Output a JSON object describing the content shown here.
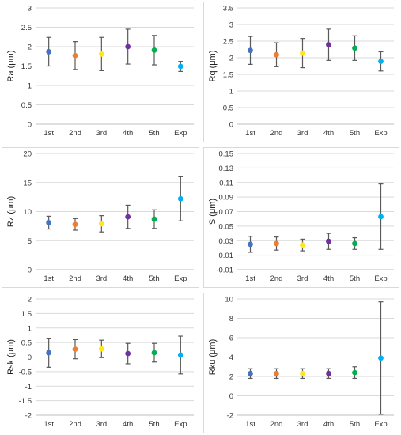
{
  "chart_data": [
    {
      "type": "scatter",
      "ylabel": "Ra (μm)",
      "categories": [
        "1st",
        "2nd",
        "3rd",
        "4th",
        "5th",
        "Exp"
      ],
      "values": [
        1.87,
        1.77,
        1.81,
        2.0,
        1.91,
        1.49
      ],
      "errors": [
        0.37,
        0.36,
        0.43,
        0.45,
        0.38,
        0.13
      ],
      "ylim": [
        0,
        3
      ],
      "yticks": [
        "0",
        "0.5",
        "1",
        "1.5",
        "2",
        "2.5",
        "3"
      ],
      "ytick_values": [
        0,
        0.5,
        1,
        1.5,
        2,
        2.5,
        3
      ]
    },
    {
      "type": "scatter",
      "ylabel": "Rq (μm)",
      "categories": [
        "1st",
        "2nd",
        "3rd",
        "4th",
        "5th",
        "Exp"
      ],
      "values": [
        2.22,
        2.09,
        2.14,
        2.39,
        2.29,
        1.89
      ],
      "errors": [
        0.42,
        0.36,
        0.44,
        0.47,
        0.37,
        0.29
      ],
      "ylim": [
        0,
        3.5
      ],
      "yticks": [
        "0",
        "0.5",
        "1",
        "1.5",
        "2",
        "2.5",
        "3",
        "3.5"
      ],
      "ytick_values": [
        0,
        0.5,
        1,
        1.5,
        2,
        2.5,
        3,
        3.5
      ]
    },
    {
      "type": "scatter",
      "ylabel": "Rz (μm)",
      "categories": [
        "1st",
        "2nd",
        "3rd",
        "4th",
        "5th",
        "Exp"
      ],
      "values": [
        8.1,
        7.8,
        7.9,
        9.1,
        8.7,
        12.2
      ],
      "errors": [
        1.1,
        1.0,
        1.4,
        2.0,
        1.6,
        3.8
      ],
      "ylim": [
        0,
        20
      ],
      "yticks": [
        "0",
        "5",
        "10",
        "15",
        "20"
      ],
      "ytick_values": [
        0,
        5,
        10,
        15,
        20
      ]
    },
    {
      "type": "scatter",
      "ylabel": "S (μm)",
      "categories": [
        "1st",
        "2nd",
        "3rd",
        "4th",
        "5th",
        "Exp"
      ],
      "values": [
        0.025,
        0.026,
        0.024,
        0.029,
        0.026,
        0.063
      ],
      "errors": [
        0.011,
        0.009,
        0.008,
        0.011,
        0.008,
        0.045
      ],
      "ylim": [
        -0.01,
        0.15
      ],
      "yticks": [
        "-0.01",
        "0.01",
        "0.03",
        "0.05",
        "0.07",
        "0.09",
        "0.11",
        "0.13",
        "0.15"
      ],
      "ytick_values": [
        -0.01,
        0.01,
        0.03,
        0.05,
        0.07,
        0.09,
        0.11,
        0.13,
        0.15
      ]
    },
    {
      "type": "scatter",
      "ylabel": "Rsk (μm)",
      "categories": [
        "1st",
        "2nd",
        "3rd",
        "4th",
        "5th",
        "Exp"
      ],
      "values": [
        0.15,
        0.27,
        0.28,
        0.12,
        0.15,
        0.07
      ],
      "errors": [
        0.5,
        0.33,
        0.3,
        0.35,
        0.32,
        0.65
      ],
      "ylim": [
        -2,
        2
      ],
      "yticks": [
        "-2",
        "-1.5",
        "-1",
        "-0.5",
        "0",
        "0.5",
        "1",
        "1.5",
        "2"
      ],
      "ytick_values": [
        -2,
        -1.5,
        -1,
        -0.5,
        0,
        0.5,
        1,
        1.5,
        2
      ]
    },
    {
      "type": "scatter",
      "ylabel": "Rku (μm)",
      "categories": [
        "1st",
        "2nd",
        "3rd",
        "4th",
        "5th",
        "Exp"
      ],
      "values": [
        2.3,
        2.3,
        2.3,
        2.3,
        2.4,
        3.9
      ],
      "errors": [
        0.5,
        0.5,
        0.5,
        0.5,
        0.6,
        5.8
      ],
      "ylim": [
        -2,
        10
      ],
      "yticks": [
        "-2",
        "0",
        "2",
        "4",
        "6",
        "8",
        "10"
      ],
      "ytick_values": [
        -2,
        0,
        2,
        4,
        6,
        8,
        10
      ]
    }
  ],
  "colors": [
    "#4472c4",
    "#ed7d31",
    "#ffe81a",
    "#7030a0",
    "#00b050",
    "#00b0f0"
  ]
}
